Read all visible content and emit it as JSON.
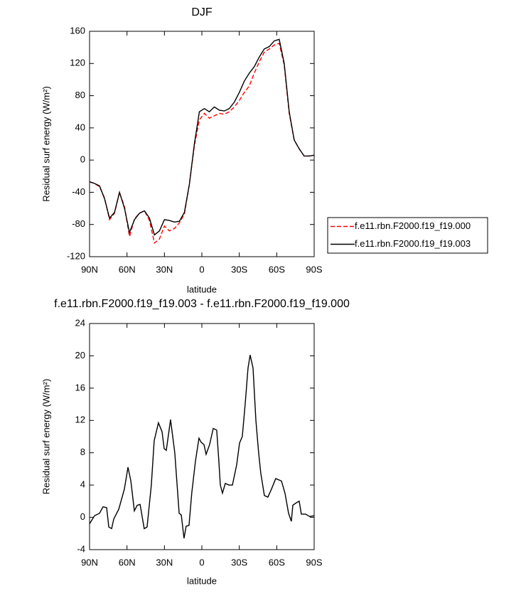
{
  "chart_data": [
    {
      "type": "line",
      "title": "DJF",
      "x_label": "latitude",
      "y_label": "Residual surf energy (W/m²)",
      "xlim": [
        90,
        -90
      ],
      "xticks": [
        {
          "value": 90,
          "label": "90N"
        },
        {
          "value": 60,
          "label": "60N"
        },
        {
          "value": 30,
          "label": "30N"
        },
        0,
        {
          "value": -30,
          "label": "30S"
        },
        {
          "value": -60,
          "label": "60S"
        },
        {
          "value": -90,
          "label": "90S"
        }
      ],
      "ylim": [
        -120,
        160
      ],
      "yticks": [
        -120,
        -80,
        -40,
        0,
        40,
        80,
        120,
        160
      ],
      "legend": "right",
      "x": [
        90,
        86,
        82,
        78,
        74,
        70,
        66,
        62,
        58,
        54,
        50,
        46,
        42,
        38,
        34,
        30,
        26,
        22,
        18,
        14,
        10,
        6,
        2,
        -2,
        -6,
        -10,
        -14,
        -18,
        -22,
        -26,
        -30,
        -34,
        -38,
        -42,
        -46,
        -50,
        -54,
        -58,
        -62,
        -66,
        -70,
        -74,
        -78,
        -82,
        -86,
        -90
      ],
      "series": [
        {
          "name": "f.e11.rbn.F2000.f19_f19.000",
          "color": "#ff0000",
          "style": "dashed",
          "values": [
            -27,
            -29,
            -33,
            -47,
            -74,
            -66,
            -40,
            -58,
            -95,
            -73,
            -66,
            -63,
            -75,
            -103,
            -98,
            -82,
            -88,
            -85,
            -78,
            -67,
            -30,
            18,
            50,
            58,
            52,
            55,
            58,
            57,
            60,
            66,
            74,
            84,
            92,
            108,
            122,
            134,
            138,
            143,
            145,
            118,
            58,
            25,
            14,
            5,
            5,
            6
          ]
        },
        {
          "name": "f.e11.rbn.F2000.f19_f19.003",
          "color": "#000000",
          "style": "solid",
          "values": [
            -27,
            -29,
            -32,
            -48,
            -72,
            -65,
            -40,
            -60,
            -90,
            -74,
            -66,
            -63,
            -72,
            -93,
            -88,
            -74,
            -75,
            -77,
            -76,
            -65,
            -30,
            20,
            60,
            64,
            60,
            66,
            62,
            61,
            64,
            72,
            84,
            98,
            108,
            116,
            128,
            138,
            141,
            148,
            150,
            120,
            60,
            25,
            14,
            5,
            5,
            6
          ]
        }
      ]
    },
    {
      "type": "line",
      "title": "f.e11.rbn.F2000.f19_f19.003 - f.e11.rbn.F2000.f19_f19.000",
      "x_label": "latitude",
      "y_label": "Residual surf energy (W/m²)",
      "xlim": [
        90,
        -90
      ],
      "xticks": [
        {
          "value": 90,
          "label": "90N"
        },
        {
          "value": 60,
          "label": "60N"
        },
        {
          "value": 30,
          "label": "30N"
        },
        0,
        {
          "value": -30,
          "label": "30S"
        },
        {
          "value": -60,
          "label": "60S"
        },
        {
          "value": -90,
          "label": "90S"
        }
      ],
      "ylim": [
        -4,
        24
      ],
      "yticks": [
        -4,
        0,
        4,
        8,
        12,
        16,
        20,
        24
      ],
      "color": "#000000",
      "x": [
        90,
        86,
        82,
        79.2,
        76.3,
        74.6,
        72.3,
        70.6,
        66.6,
        62.1,
        59.2,
        56.9,
        54.1,
        51.8,
        49.5,
        46.2,
        43.9,
        40.5,
        38.2,
        34.8,
        31.9,
        30.2,
        28.5,
        25.1,
        21.7,
        18.2,
        16.5,
        14.3,
        12.6,
        10.3,
        8.1,
        5.1,
        2.3,
        0.6,
        -1.7,
        -3.4,
        -6.2,
        -9.1,
        -11.9,
        -13.6,
        -14.8,
        -16.5,
        -18.8,
        -21.6,
        -24.5,
        -27.9,
        -30.2,
        -32.4,
        -34.7,
        -37,
        -38.7,
        -41,
        -43.3,
        -45.5,
        -47.2,
        -50.1,
        -52.9,
        -55.8,
        -59.2,
        -63.8,
        -66.6,
        -69.5,
        -71.7,
        -72.9,
        -75.7,
        -78,
        -79.7,
        -83.1,
        -86.5,
        -90
      ],
      "values": [
        -0.8,
        0.2,
        0.5,
        1.3,
        1.2,
        -1.2,
        -1.4,
        -0.2,
        1,
        3.5,
        6.2,
        4.5,
        0.8,
        1.5,
        1.6,
        -1.4,
        -1.2,
        4,
        9.5,
        11.7,
        10.6,
        8.5,
        8.3,
        12.1,
        8,
        0.5,
        0.3,
        -2.6,
        -1.1,
        -1,
        3,
        7,
        9.8,
        9.3,
        9,
        7.8,
        9,
        11,
        10.8,
        7,
        4,
        3,
        4.2,
        4,
        4,
        6.5,
        9.2,
        10,
        14,
        18.5,
        20.1,
        18.5,
        12,
        8,
        5.5,
        2.7,
        2.5,
        3.5,
        4.8,
        4.5,
        3,
        0.5,
        -0.5,
        1.5,
        1.8,
        2,
        0.4,
        0.4,
        0.1,
        0.2
      ]
    }
  ]
}
